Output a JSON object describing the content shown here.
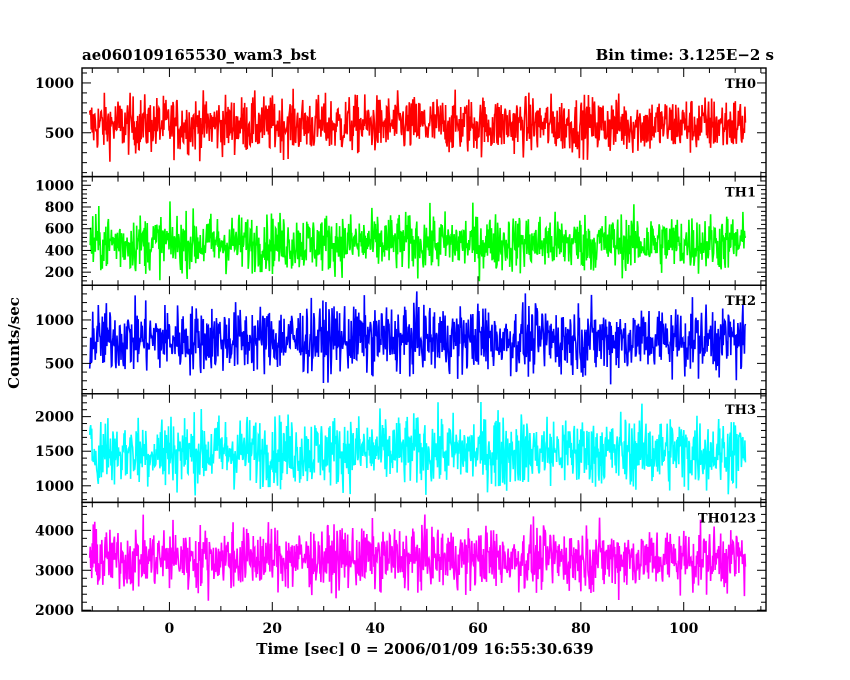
{
  "chart_data": {
    "type": "line",
    "title": "ae060109165530_wam3_bst",
    "subtitle": "Bin time: 3.125E−2 s",
    "xlabel": "Time [sec] 0 = 2006/01/09 16:55:30.639",
    "ylabel": "Counts/sec",
    "xlim": [
      -17,
      116
    ],
    "x_data_range": [
      -15.5,
      112
    ],
    "x_ticks": [
      0,
      20,
      40,
      60,
      80,
      100
    ],
    "grid": false,
    "legend": "none",
    "series": [
      {
        "name": "TH0",
        "color": "#ff0000",
        "ylim": [
          60,
          1150
        ],
        "y_ticks": [
          500,
          1000
        ],
        "mean": 580,
        "noise": 140,
        "approx_min": 150,
        "approx_max": 1100
      },
      {
        "name": "TH1",
        "color": "#00ff00",
        "ylim": [
          80,
          1080
        ],
        "y_ticks": [
          200,
          400,
          600,
          800,
          1000
        ],
        "mean": 470,
        "noise": 130,
        "approx_min": 100,
        "approx_max": 1000
      },
      {
        "name": "TH2",
        "color": "#0000ff",
        "ylim": [
          150,
          1400
        ],
        "y_ticks": [
          500,
          1000
        ],
        "mean": 780,
        "noise": 190,
        "approx_min": 250,
        "approx_max": 1380
      },
      {
        "name": "TH3",
        "color": "#00ffff",
        "ylim": [
          760,
          2330
        ],
        "y_ticks": [
          1000,
          1500,
          2000
        ],
        "mean": 1500,
        "noise": 250,
        "approx_min": 850,
        "approx_max": 2300
      },
      {
        "name": "TH0123",
        "color": "#ff00ff",
        "ylim": [
          1980,
          4700
        ],
        "y_ticks": [
          2000,
          3000,
          4000
        ],
        "mean": 3300,
        "noise": 380,
        "approx_min": 2050,
        "approx_max": 4600
      }
    ]
  }
}
